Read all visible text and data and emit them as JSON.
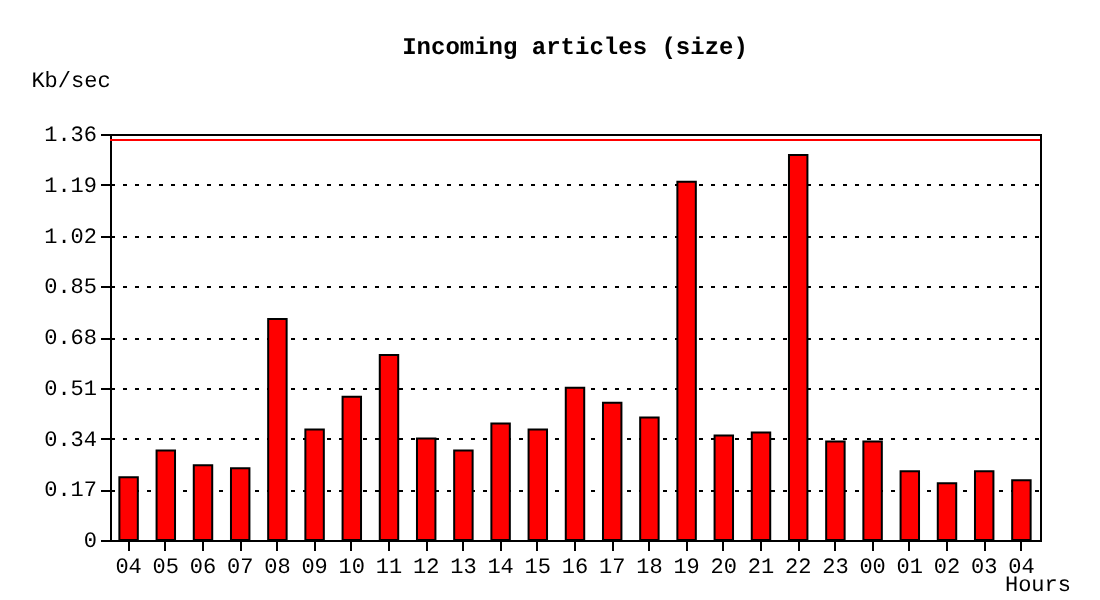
{
  "chart_data": {
    "type": "bar",
    "title": "Incoming articles (size)",
    "ylabel": "Kb/sec",
    "xlabel": "Hours",
    "categories": [
      "04",
      "05",
      "06",
      "07",
      "08",
      "09",
      "10",
      "11",
      "12",
      "13",
      "14",
      "15",
      "16",
      "17",
      "18",
      "19",
      "20",
      "21",
      "22",
      "23",
      "00",
      "01",
      "02",
      "03",
      "04"
    ],
    "values": [
      0.21,
      0.3,
      0.25,
      0.24,
      0.74,
      0.37,
      0.48,
      0.62,
      0.34,
      0.3,
      0.39,
      0.37,
      0.51,
      0.46,
      0.41,
      1.2,
      0.35,
      0.36,
      1.29,
      0.33,
      0.33,
      0.23,
      0.19,
      0.23,
      0.2
    ],
    "color": "#ff0000",
    "ylim": [
      0,
      1.36
    ],
    "yticks": [
      0,
      0.17,
      0.34,
      0.51,
      0.68,
      0.85,
      1.02,
      1.19,
      1.36
    ],
    "grid": "y",
    "ref_lines": [
      {
        "axis": "y",
        "value": 1.34,
        "color": "#ff0000"
      }
    ]
  }
}
